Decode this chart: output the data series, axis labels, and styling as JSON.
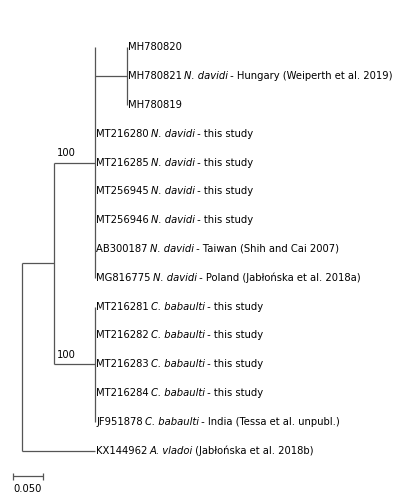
{
  "line_color": "#555555",
  "text_color": "#000000",
  "bg_color": "#ffffff",
  "font_size": 7.2,
  "scale_bar_label": "0.050",
  "leaves": [
    {
      "acc": "MH780820",
      "italic": "",
      "rest": "",
      "row": 14
    },
    {
      "acc": "MH780821",
      "italic": "N. davidi",
      "rest": " - Hungary (Weiperth et al. 2019)",
      "row": 13
    },
    {
      "acc": "MH780819",
      "italic": "",
      "rest": "",
      "row": 12
    },
    {
      "acc": "MT216280",
      "italic": "N. davidi",
      "rest": " - this study",
      "row": 11
    },
    {
      "acc": "MT216285",
      "italic": "N. davidi",
      "rest": " - this study",
      "row": 10
    },
    {
      "acc": "MT256945",
      "italic": "N. davidi",
      "rest": " - this study",
      "row": 9
    },
    {
      "acc": "MT256946",
      "italic": "N. davidi",
      "rest": " - this study",
      "row": 8
    },
    {
      "acc": "AB300187",
      "italic": "N. davidi",
      "rest": " - Taiwan (Shih and Cai 2007)",
      "row": 7
    },
    {
      "acc": "MG816775",
      "italic": "N. davidi",
      "rest": " - Poland (Jabłońska et al. 2018a)",
      "row": 6
    },
    {
      "acc": "MT216281",
      "italic": "C. babaulti",
      "rest": " - this study",
      "row": 5
    },
    {
      "acc": "MT216282",
      "italic": "C. babaulti",
      "rest": " - this study",
      "row": 4
    },
    {
      "acc": "MT216283",
      "italic": "C. babaulti",
      "rest": " - this study",
      "row": 3
    },
    {
      "acc": "MT216284",
      "italic": "C. babaulti",
      "rest": " - this study",
      "row": 2
    },
    {
      "acc": "JF951878",
      "italic": "C. babaulti",
      "rest": " - India (Tessa et al. unpubl.)",
      "row": 1
    },
    {
      "acc": "KX144962",
      "italic": "A. vladoi",
      "rest": " (Jabłońska et al. 2018b)",
      "row": 0
    }
  ]
}
